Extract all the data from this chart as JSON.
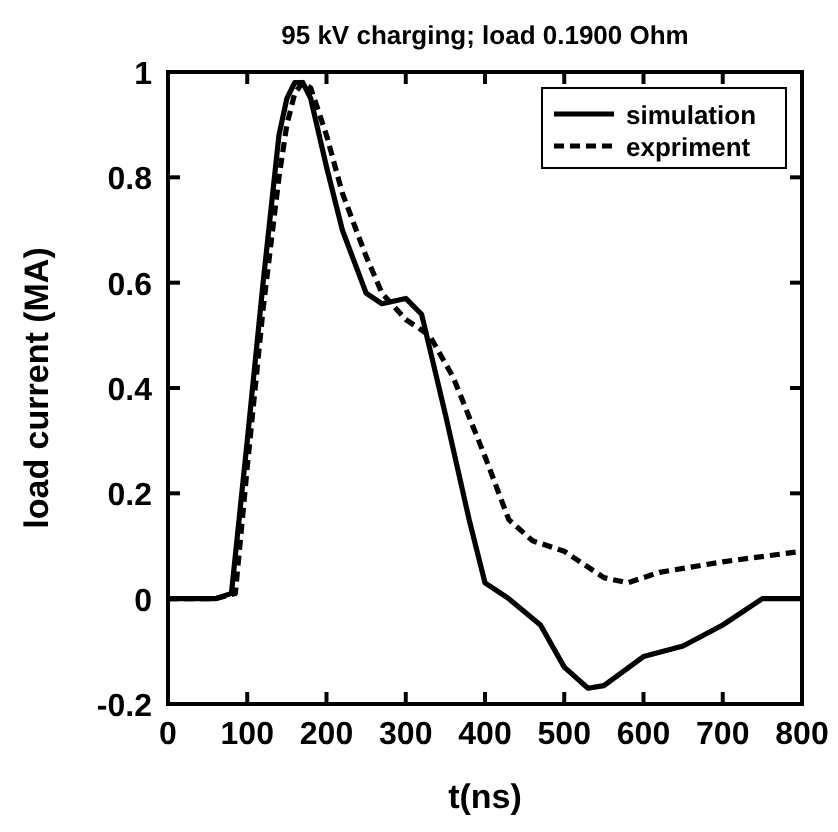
{
  "chart_data": {
    "type": "line",
    "title": "95 kV charging; load 0.1900 Ohm",
    "xlabel": "t(ns)",
    "ylabel": "load current (MA)",
    "xlim": [
      0,
      800
    ],
    "ylim": [
      -0.2,
      1
    ],
    "xticks": [
      0,
      100,
      200,
      300,
      400,
      500,
      600,
      700,
      800
    ],
    "yticks": [
      -0.2,
      0,
      0.2,
      0.4,
      0.6,
      0.8,
      1
    ],
    "legend": "top right",
    "grid": false,
    "marker": "none",
    "series": [
      {
        "name": "simulation",
        "color": "#000000",
        "line_style": "solid",
        "x": [
          0,
          60,
          80,
          100,
          120,
          140,
          150,
          160,
          170,
          180,
          200,
          220,
          250,
          270,
          300,
          320,
          350,
          380,
          400,
          430,
          470,
          500,
          530,
          550,
          600,
          650,
          700,
          750,
          800
        ],
        "values": [
          0,
          0,
          0.01,
          0.3,
          0.6,
          0.88,
          0.95,
          0.98,
          0.98,
          0.95,
          0.82,
          0.7,
          0.58,
          0.56,
          0.57,
          0.54,
          0.35,
          0.15,
          0.03,
          0,
          -0.05,
          -0.13,
          -0.17,
          -0.165,
          -0.11,
          -0.09,
          -0.05,
          0,
          0
        ]
      },
      {
        "name": "expriment",
        "color": "#000000",
        "line_style": "dashed",
        "x": [
          0,
          60,
          85,
          100,
          120,
          140,
          150,
          160,
          170,
          180,
          200,
          220,
          250,
          270,
          300,
          330,
          360,
          400,
          430,
          460,
          500,
          550,
          580,
          620,
          700,
          800
        ],
        "values": [
          0,
          0,
          0.01,
          0.25,
          0.55,
          0.8,
          0.9,
          0.96,
          0.98,
          0.97,
          0.88,
          0.77,
          0.65,
          0.58,
          0.53,
          0.5,
          0.42,
          0.27,
          0.15,
          0.11,
          0.09,
          0.04,
          0.03,
          0.05,
          0.07,
          0.09
        ]
      }
    ]
  }
}
